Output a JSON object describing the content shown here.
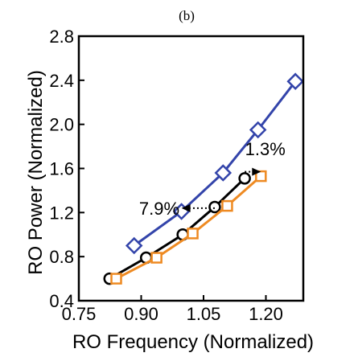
{
  "chart_data": {
    "type": "line",
    "panel_label": "(b)",
    "xlabel": "RO Frequency (Normalized)",
    "ylabel": "RO Power (Normalized)",
    "xlim": [
      0.75,
      1.29
    ],
    "ylim": [
      0.4,
      2.8
    ],
    "xticks": [
      0.75,
      0.9,
      1.05,
      1.2
    ],
    "xtick_labels": [
      "0.75",
      "0.90",
      "1.05",
      "1.20"
    ],
    "yticks": [
      0.4,
      0.8,
      1.2,
      1.6,
      2.0,
      2.4,
      2.8
    ],
    "ytick_labels": [
      "0.4",
      "0.8",
      "1.2",
      "1.6",
      "2.0",
      "2.4",
      "2.8"
    ],
    "grid": false,
    "series": [
      {
        "marker": "diamond",
        "color": "#3344aa",
        "x": [
          0.883,
          0.997,
          1.097,
          1.181,
          1.271
        ],
        "y": [
          0.9,
          1.21,
          1.56,
          1.95,
          2.39
        ]
      },
      {
        "marker": "circle",
        "color": "#000000",
        "x": [
          0.824,
          0.912,
          1.0,
          1.077,
          1.149
        ],
        "y": [
          0.6,
          0.79,
          1.0,
          1.25,
          1.51
        ]
      },
      {
        "marker": "square",
        "color": "#ee8a22",
        "x": [
          0.84,
          0.937,
          1.024,
          1.107,
          1.188
        ],
        "y": [
          0.6,
          0.79,
          1.01,
          1.26,
          1.53
        ]
      }
    ],
    "annotations": [
      {
        "text": "7.9%",
        "x_from": 1.077,
        "x_to": 0.997,
        "y": 1.24,
        "text_anchor": "end",
        "text_x": 0.992,
        "text_y": 1.24
      },
      {
        "text": "1.3%",
        "x_from": 1.149,
        "x_to": 1.188,
        "y": 1.57,
        "text_anchor": "start",
        "text_x": 1.15,
        "text_y": 1.78
      }
    ]
  }
}
